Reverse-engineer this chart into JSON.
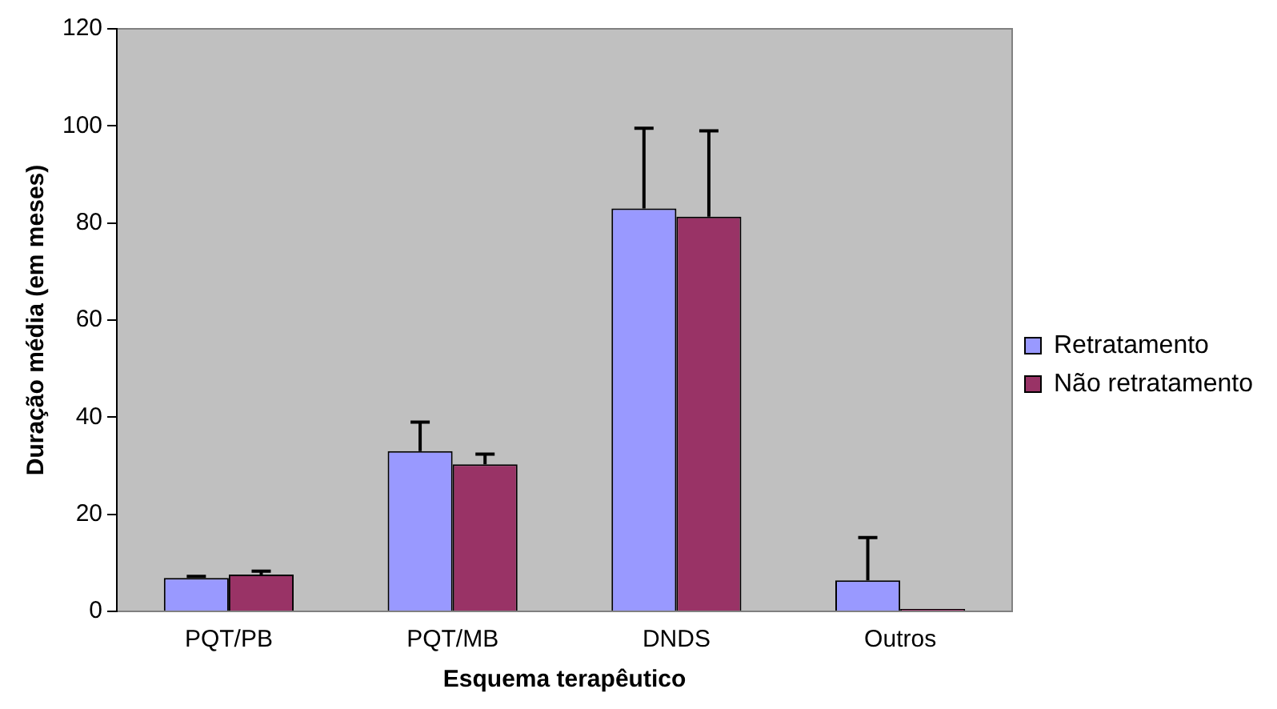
{
  "chart_data": {
    "type": "bar",
    "xlabel": "Esquema terapêutico",
    "ylabel": "Duração média (em meses)",
    "categories": [
      "PQT/PB",
      "PQT/MB",
      "DNDS",
      "Outros"
    ],
    "series": [
      {
        "name": "Retratamento",
        "color": "#9999ff",
        "values": [
          6.9,
          33,
          83,
          6.4
        ],
        "errors": [
          [
            6.9,
            7.2
          ],
          [
            33,
            39
          ],
          [
            83,
            99.5
          ],
          [
            6.4,
            15.2
          ]
        ]
      },
      {
        "name": "Não retratamento",
        "color": "#993366",
        "values": [
          7.6,
          30.3,
          81.3,
          0.5
        ],
        "errors": [
          [
            7.6,
            8.3
          ],
          [
            30.3,
            32.4
          ],
          [
            81.3,
            99
          ],
          null
        ]
      }
    ],
    "ylim": [
      0,
      120
    ],
    "yticks": [
      0,
      20,
      40,
      60,
      80,
      100,
      120
    ],
    "grid": false,
    "legend": "right"
  }
}
